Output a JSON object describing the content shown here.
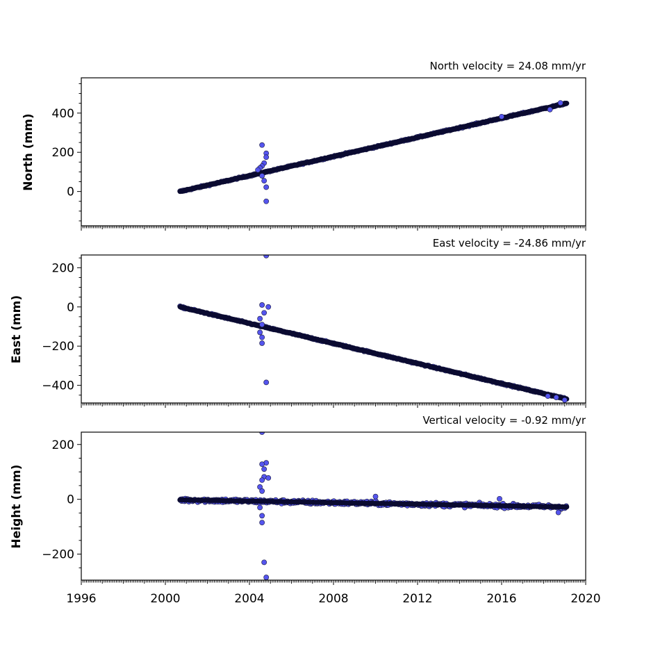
{
  "chart_data": [
    {
      "type": "scatter",
      "title": "North velocity = 24.08 mm/yr",
      "ylabel": "North (mm)",
      "xlim": [
        1996,
        2020
      ],
      "ylim": [
        -175,
        580
      ],
      "yticks": [
        0,
        200,
        400
      ],
      "ytick_labels": [
        "0",
        "200",
        "400"
      ],
      "yminor_step": 50,
      "velocity_mm_per_yr": 24.08,
      "trend": {
        "x0": 2000.7,
        "y0": 0,
        "x1": 2019.1,
        "y1": 450
      },
      "scatter_sd": 3,
      "extra_points": [
        {
          "x": 2004.6,
          "y": 237
        },
        {
          "x": 2004.8,
          "y": 195
        },
        {
          "x": 2004.8,
          "y": 175
        },
        {
          "x": 2004.7,
          "y": 145
        },
        {
          "x": 2004.6,
          "y": 130
        },
        {
          "x": 2004.5,
          "y": 120
        },
        {
          "x": 2004.4,
          "y": 110
        },
        {
          "x": 2004.6,
          "y": 80
        },
        {
          "x": 2004.7,
          "y": 55
        },
        {
          "x": 2004.8,
          "y": 22
        },
        {
          "x": 2004.8,
          "y": -50
        },
        {
          "x": 2016.0,
          "y": 382
        },
        {
          "x": 2018.3,
          "y": 418
        },
        {
          "x": 2018.8,
          "y": 452
        }
      ]
    },
    {
      "type": "scatter",
      "title": "East velocity = -24.86 mm/yr",
      "ylabel": "East (mm)",
      "xlim": [
        1996,
        2020
      ],
      "ylim": [
        -490,
        265
      ],
      "yticks": [
        -400,
        -200,
        0,
        200
      ],
      "ytick_labels": [
        "−400",
        "−200",
        "0",
        "200"
      ],
      "yminor_step": 50,
      "velocity_mm_per_yr": -24.86,
      "trend": {
        "x0": 2000.7,
        "y0": 0,
        "x1": 2019.1,
        "y1": -470
      },
      "scatter_sd": 3,
      "extra_points": [
        {
          "x": 2004.8,
          "y": 262
        },
        {
          "x": 2004.6,
          "y": 10
        },
        {
          "x": 2004.9,
          "y": 0
        },
        {
          "x": 2004.7,
          "y": -30
        },
        {
          "x": 2004.5,
          "y": -60
        },
        {
          "x": 2004.6,
          "y": -90
        },
        {
          "x": 2004.5,
          "y": -130
        },
        {
          "x": 2004.6,
          "y": -155
        },
        {
          "x": 2004.6,
          "y": -185
        },
        {
          "x": 2004.8,
          "y": -385
        },
        {
          "x": 2018.2,
          "y": -455
        },
        {
          "x": 2018.6,
          "y": -462
        },
        {
          "x": 2019.0,
          "y": -475
        }
      ]
    },
    {
      "type": "scatter",
      "title": "Vertical velocity = -0.92 mm/yr",
      "ylabel": "Height (mm)",
      "xlabel": "",
      "xlim": [
        1996,
        2020
      ],
      "ylim": [
        -295,
        245
      ],
      "yticks": [
        -200,
        0,
        200
      ],
      "ytick_labels": [
        "−200",
        "0",
        "200"
      ],
      "yminor_step": 50,
      "velocity_mm_per_yr": -0.92,
      "trend": {
        "x0": 2000.7,
        "y0": -2,
        "x1": 2019.1,
        "y1": -28
      },
      "scatter_sd": 7,
      "extra_points": [
        {
          "x": 2004.6,
          "y": 245
        },
        {
          "x": 2004.8,
          "y": 133
        },
        {
          "x": 2004.6,
          "y": 128
        },
        {
          "x": 2004.7,
          "y": 110
        },
        {
          "x": 2004.7,
          "y": 82
        },
        {
          "x": 2004.9,
          "y": 78
        },
        {
          "x": 2004.6,
          "y": 70
        },
        {
          "x": 2004.5,
          "y": 45
        },
        {
          "x": 2004.6,
          "y": 30
        },
        {
          "x": 2004.5,
          "y": -30
        },
        {
          "x": 2004.6,
          "y": -60
        },
        {
          "x": 2004.6,
          "y": -85
        },
        {
          "x": 2004.7,
          "y": -230
        },
        {
          "x": 2004.8,
          "y": -285
        },
        {
          "x": 2010.0,
          "y": 10
        },
        {
          "x": 2015.9,
          "y": 2
        },
        {
          "x": 2018.7,
          "y": -48
        }
      ]
    }
  ],
  "xaxis": {
    "ticks": [
      1996,
      2000,
      2004,
      2008,
      2012,
      2016,
      2020
    ],
    "tick_labels": [
      "1996",
      "2000",
      "2004",
      "2008",
      "2012",
      "2016",
      "2020"
    ],
    "minor_per_year": 12
  },
  "colors": {
    "point_fill": "#5555ee",
    "point_edge": "#1a1a3a",
    "trend": "#0a0a30"
  }
}
